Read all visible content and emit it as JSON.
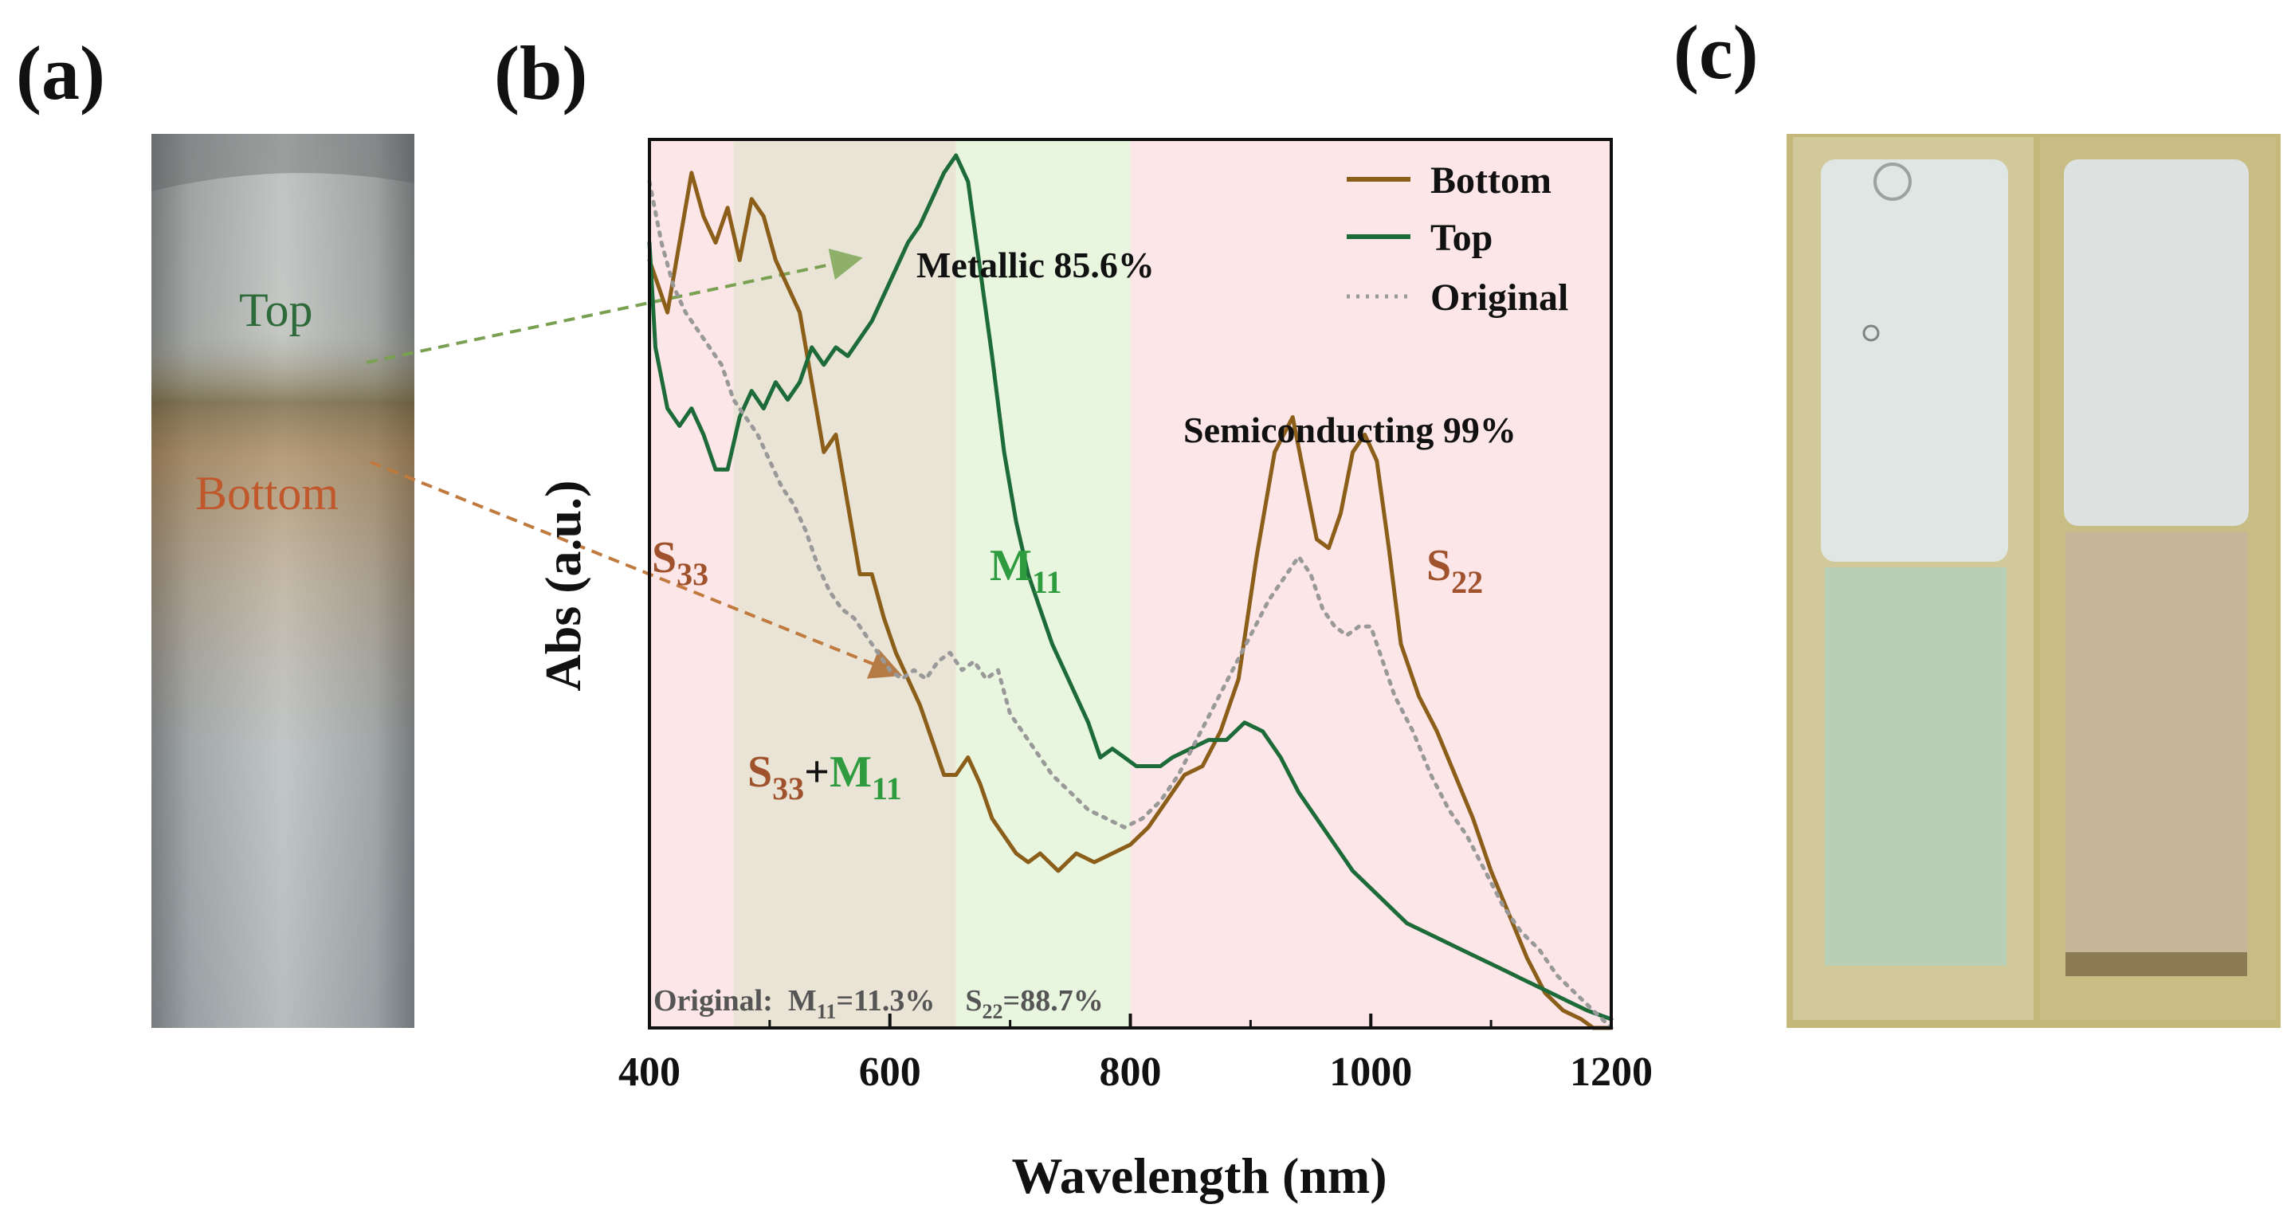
{
  "panels": {
    "a": "(a)",
    "b": "(b)",
    "c": "(c)"
  },
  "photo_a": {
    "top_label": "Top",
    "bottom_label": "Bottom"
  },
  "colors": {
    "bottom": "#8B5E1A",
    "top": "#1E6B3A",
    "original": "#999999",
    "s_label": "#A0522D",
    "m_label": "#2E9B3E",
    "band_s33": "#e9e4d5",
    "band_m11": "#e9f6df",
    "band_bg": "#fde6e8"
  },
  "chart_data": {
    "type": "line",
    "title": "",
    "xlabel": "Wavelength (nm)",
    "ylabel": "Abs (a.u.)",
    "xlim": [
      400,
      1200
    ],
    "ylim": [
      0,
      1
    ],
    "xticks": [
      400,
      600,
      800,
      1000,
      1200
    ],
    "shaded_regions": [
      {
        "name": "S33",
        "range": [
          470,
          655
        ]
      },
      {
        "name": "M11",
        "range": [
          655,
          800
        ]
      }
    ],
    "legend": [
      "Bottom",
      "Top",
      "Original"
    ],
    "series": [
      {
        "name": "Bottom",
        "x": [
          400,
          415,
          425,
          435,
          445,
          455,
          465,
          475,
          485,
          495,
          505,
          515,
          525,
          535,
          545,
          555,
          565,
          575,
          585,
          595,
          605,
          615,
          625,
          635,
          645,
          655,
          665,
          675,
          685,
          695,
          705,
          715,
          725,
          740,
          755,
          770,
          785,
          800,
          815,
          830,
          845,
          860,
          875,
          890,
          905,
          920,
          935,
          945,
          955,
          965,
          975,
          985,
          995,
          1005,
          1015,
          1025,
          1040,
          1055,
          1070,
          1085,
          1100,
          1115,
          1130,
          1145,
          1160,
          1175,
          1185,
          1200
        ],
        "y": [
          0.88,
          0.82,
          0.9,
          0.98,
          0.93,
          0.9,
          0.94,
          0.88,
          0.95,
          0.93,
          0.88,
          0.85,
          0.82,
          0.74,
          0.66,
          0.68,
          0.6,
          0.52,
          0.52,
          0.47,
          0.43,
          0.4,
          0.37,
          0.33,
          0.29,
          0.29,
          0.31,
          0.28,
          0.24,
          0.22,
          0.2,
          0.19,
          0.2,
          0.18,
          0.2,
          0.19,
          0.2,
          0.21,
          0.23,
          0.26,
          0.29,
          0.3,
          0.34,
          0.4,
          0.54,
          0.66,
          0.7,
          0.63,
          0.56,
          0.55,
          0.59,
          0.66,
          0.68,
          0.65,
          0.55,
          0.44,
          0.38,
          0.34,
          0.29,
          0.24,
          0.18,
          0.13,
          0.08,
          0.04,
          0.02,
          0.01,
          0.0,
          0.0
        ]
      },
      {
        "name": "Top",
        "x": [
          400,
          405,
          415,
          425,
          435,
          445,
          455,
          465,
          475,
          485,
          495,
          505,
          515,
          525,
          535,
          545,
          555,
          565,
          575,
          585,
          595,
          605,
          615,
          625,
          635,
          645,
          655,
          665,
          675,
          685,
          695,
          705,
          715,
          725,
          735,
          745,
          755,
          765,
          775,
          785,
          795,
          805,
          815,
          825,
          835,
          850,
          865,
          880,
          895,
          910,
          925,
          940,
          955,
          970,
          985,
          1000,
          1015,
          1030,
          1045,
          1060,
          1075,
          1090,
          1105,
          1120,
          1135,
          1150,
          1165,
          1180,
          1200
        ],
        "y": [
          0.9,
          0.78,
          0.71,
          0.69,
          0.71,
          0.68,
          0.64,
          0.64,
          0.7,
          0.73,
          0.71,
          0.74,
          0.72,
          0.74,
          0.78,
          0.76,
          0.78,
          0.77,
          0.79,
          0.81,
          0.84,
          0.87,
          0.9,
          0.92,
          0.95,
          0.98,
          1.0,
          0.97,
          0.87,
          0.77,
          0.66,
          0.58,
          0.52,
          0.48,
          0.44,
          0.41,
          0.38,
          0.35,
          0.31,
          0.32,
          0.31,
          0.3,
          0.3,
          0.3,
          0.31,
          0.32,
          0.33,
          0.33,
          0.35,
          0.34,
          0.31,
          0.27,
          0.24,
          0.21,
          0.18,
          0.16,
          0.14,
          0.12,
          0.11,
          0.1,
          0.09,
          0.08,
          0.07,
          0.06,
          0.05,
          0.04,
          0.03,
          0.02,
          0.01
        ]
      },
      {
        "name": "Original",
        "x": [
          400,
          410,
          420,
          430,
          440,
          450,
          460,
          470,
          480,
          490,
          500,
          510,
          520,
          530,
          540,
          550,
          560,
          570,
          580,
          590,
          600,
          610,
          620,
          630,
          640,
          650,
          660,
          670,
          680,
          690,
          700,
          710,
          720,
          735,
          750,
          765,
          780,
          795,
          810,
          825,
          840,
          855,
          870,
          885,
          900,
          915,
          930,
          940,
          950,
          960,
          970,
          980,
          990,
          1000,
          1010,
          1020,
          1035,
          1050,
          1065,
          1080,
          1095,
          1110,
          1125,
          1140,
          1155,
          1170,
          1185,
          1200
        ],
        "y": [
          0.97,
          0.9,
          0.85,
          0.82,
          0.8,
          0.78,
          0.76,
          0.72,
          0.7,
          0.68,
          0.65,
          0.62,
          0.6,
          0.57,
          0.53,
          0.5,
          0.48,
          0.47,
          0.45,
          0.43,
          0.41,
          0.4,
          0.41,
          0.4,
          0.42,
          0.43,
          0.41,
          0.42,
          0.4,
          0.41,
          0.36,
          0.34,
          0.32,
          0.29,
          0.27,
          0.25,
          0.24,
          0.23,
          0.24,
          0.26,
          0.29,
          0.33,
          0.37,
          0.41,
          0.45,
          0.49,
          0.52,
          0.54,
          0.52,
          0.48,
          0.46,
          0.45,
          0.46,
          0.46,
          0.42,
          0.38,
          0.34,
          0.29,
          0.25,
          0.22,
          0.18,
          0.14,
          0.11,
          0.09,
          0.06,
          0.04,
          0.02,
          0.0
        ]
      }
    ],
    "annotations": {
      "metallic": "Metallic 85.6%",
      "semiconducting": "Semiconducting 99%",
      "s33": "S",
      "s33_sub": "33",
      "m11": "M",
      "m11_sub": "11",
      "s22": "S",
      "s22_sub": "22",
      "combo_s": "S",
      "combo_s_sub": "33",
      "combo_plus": "+",
      "combo_m": "M",
      "combo_m_sub": "11",
      "original_prefix": "Original:  M",
      "original_m_sub": "11",
      "original_m_val": "=11.3%    S",
      "original_s_sub": "22",
      "original_s_val": "=88.7%"
    }
  }
}
